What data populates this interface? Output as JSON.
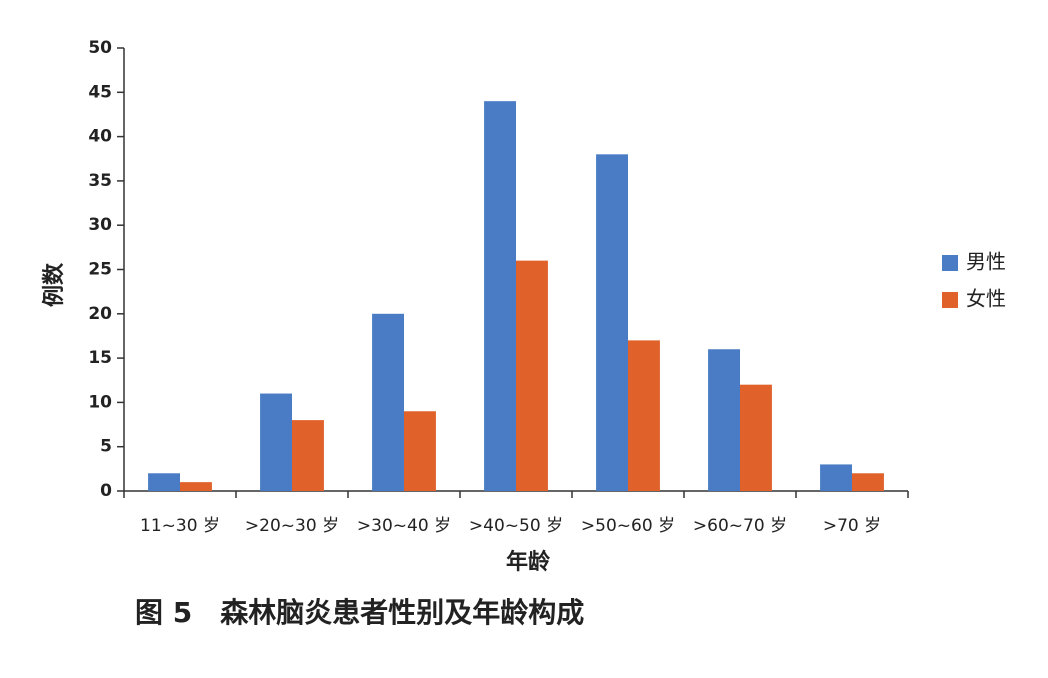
{
  "chart_data": {
    "type": "bar",
    "title": "图 5　森林脑炎患者性别及年龄构成",
    "x_label": "年龄",
    "y_label": "例数",
    "categories": [
      "11~30 岁",
      ">20~30 岁",
      ">30~40 岁",
      ">40~50 岁",
      ">50~60 岁",
      ">60~70 岁",
      ">70 岁"
    ],
    "series": [
      {
        "name": "男性",
        "color": "#4a7cc5",
        "values": [
          2,
          11,
          20,
          44,
          38,
          16,
          3
        ]
      },
      {
        "name": "女性",
        "color": "#e0622a",
        "values": [
          1,
          8,
          9,
          26,
          17,
          12,
          2
        ]
      }
    ],
    "ylim": [
      0,
      50
    ],
    "yticks": [
      0,
      5,
      10,
      15,
      20,
      25,
      30,
      35,
      40,
      45,
      50
    ],
    "grid": false,
    "legend": "right"
  }
}
